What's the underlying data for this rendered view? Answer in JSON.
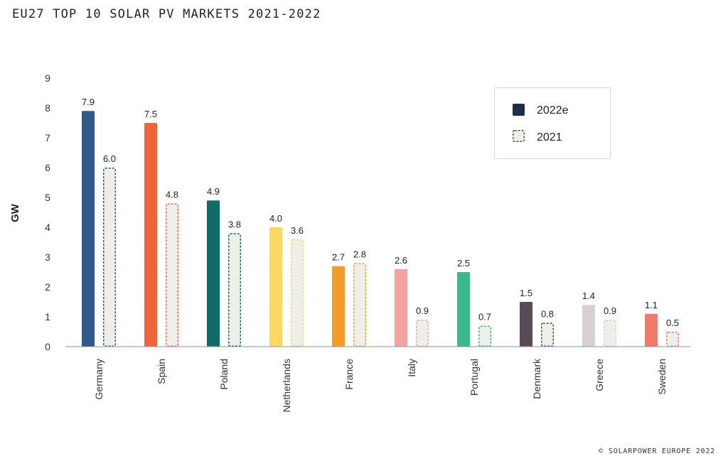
{
  "title": "EU27 TOP 10 SOLAR PV MARKETS 2021-2022",
  "footer": "© SOLARPOWER EUROPE 2022",
  "chart_data": {
    "type": "bar",
    "title": "EU27 TOP 10 SOLAR PV MARKETS 2021-2022",
    "ylabel": "GW",
    "xlabel": "",
    "ylim": [
      0,
      9
    ],
    "yticks": [
      0,
      1,
      2,
      3,
      4,
      5,
      6,
      7,
      8,
      9
    ],
    "grid": false,
    "legend_position": "top-right",
    "categories": [
      "Germany",
      "Spain",
      "Poland",
      "Netherlands",
      "France",
      "Italy",
      "Portugal",
      "Denmark",
      "Greece",
      "Sweden"
    ],
    "category_colors": [
      "#2e5a8e",
      "#f0643c",
      "#0f6b63",
      "#fcd862",
      "#f39c2a",
      "#f5a3a0",
      "#3ab98a",
      "#5a4a55",
      "#d8cfd0",
      "#ef7a6a"
    ],
    "series": [
      {
        "name": "2022e",
        "style": "solid",
        "legend_color": "#1c2e4a",
        "values": [
          7.9,
          7.5,
          4.9,
          4.0,
          2.7,
          2.6,
          2.5,
          1.5,
          1.4,
          1.1
        ],
        "labels": [
          "7.9",
          "7.5",
          "4.9",
          "4.0",
          "2.7",
          "2.6",
          "2.5",
          "1.5",
          "1.4",
          "1.1"
        ]
      },
      {
        "name": "2021",
        "style": "dashed",
        "fill_color": "#efefea",
        "values": [
          6.0,
          4.8,
          3.8,
          3.6,
          2.8,
          0.9,
          0.7,
          0.8,
          0.9,
          0.5
        ],
        "labels": [
          "6.0",
          "4.8",
          "3.8",
          "3.6",
          "2.8",
          "0.9",
          "0.7",
          "0.8",
          "0.9",
          "0.5"
        ]
      }
    ]
  }
}
